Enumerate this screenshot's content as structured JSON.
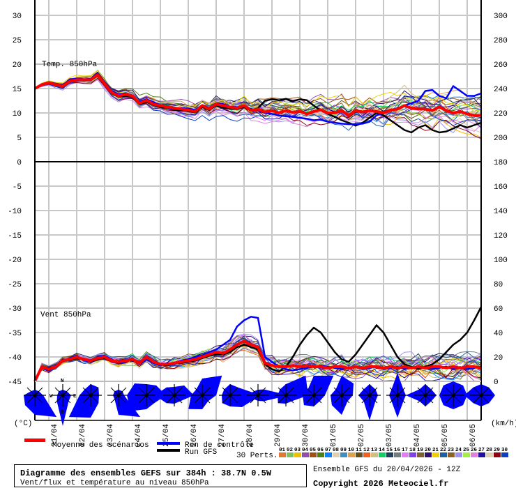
{
  "chart_data": {
    "type": "line",
    "title": "Diagramme des ensembles GEFS sur 384h : 38.7N 0.5W",
    "subtitle": "Vent/flux et température au niveau 850hPa",
    "run_info": "Ensemble GFS du 20/04/2026 - 12Z",
    "copyright": "Copyright 2026 Meteociel.fr",
    "step_hours": 6,
    "x_dates": [
      "21/04",
      "22/04",
      "23/04",
      "24/04",
      "25/04",
      "26/04",
      "27/04",
      "28/04",
      "29/04",
      "30/04",
      "01/05",
      "02/05",
      "03/05",
      "04/05",
      "05/05",
      "06/05"
    ],
    "left_axis_unit": "(°C)",
    "right_axis_unit": "(km/h)",
    "left_ticks": [
      "30",
      "25",
      "20",
      "15",
      "10",
      "5",
      "0",
      "-5",
      "-10",
      "-15",
      "-20",
      "-25",
      "-30",
      "-35",
      "-40",
      "-45"
    ],
    "right_ticks": [
      "300",
      "280",
      "260",
      "240",
      "220",
      "200",
      "180",
      "160",
      "140",
      "120",
      "100",
      "80",
      "60",
      "40",
      "20",
      "0"
    ],
    "temp_panel": {
      "label": "Temp. 850hPa",
      "unit": "°C",
      "ylim": [
        0,
        30
      ],
      "mean": [
        15,
        15.8,
        16.2,
        15.8,
        15.5,
        16.5,
        16.8,
        16.8,
        16.8,
        17.8,
        16,
        14.2,
        13.5,
        13.8,
        13.5,
        12,
        12.6,
        11.8,
        11.5,
        11.2,
        11,
        10.8,
        10.6,
        10.3,
        11.5,
        10.8,
        11.8,
        11.5,
        11.2,
        11,
        11.5,
        10.5,
        10.8,
        10.2,
        10.5,
        10,
        10.5,
        10.1,
        10.3,
        9.8,
        10.3,
        10.6,
        10,
        10,
        10.5,
        9.5,
        10.5,
        10.2,
        10.5,
        10.3,
        10,
        10.6,
        10.8,
        11.5,
        11,
        10.8,
        10.8,
        10.5,
        11.2,
        10.5,
        10,
        10.3,
        9.8,
        9.5,
        9.5
      ],
      "control": [
        15,
        15.9,
        16.3,
        15.9,
        15.4,
        16.8,
        17,
        16.9,
        17,
        18,
        16.2,
        14.5,
        13.8,
        14,
        13.2,
        12.3,
        12.8,
        12.2,
        11.6,
        11,
        10.8,
        11,
        10.9,
        10.6,
        11.6,
        11,
        12,
        11.8,
        11.3,
        11.2,
        11.4,
        10.8,
        10.5,
        10,
        9.8,
        9.5,
        9.3,
        9.2,
        9,
        8.8,
        8.5,
        8.6,
        8.2,
        8,
        7.8,
        7.7,
        7.7,
        7.8,
        8.2,
        9.5,
        10,
        10.5,
        11,
        11.5,
        12,
        12.5,
        14.5,
        14.7,
        13.5,
        13,
        15.5,
        14.5,
        13.5,
        13.5,
        14
      ],
      "gfs": [
        15,
        15.8,
        16.1,
        15.7,
        15.6,
        16.6,
        16.7,
        16.6,
        16.7,
        17.6,
        15.8,
        14,
        13.3,
        13.5,
        13.2,
        11.8,
        12.3,
        11.6,
        11.2,
        11,
        10.6,
        10.5,
        10.4,
        10.1,
        11.2,
        10.6,
        11.5,
        11.1,
        10.9,
        10.8,
        11.2,
        10.5,
        11,
        12.5,
        12.8,
        12.6,
        12.9,
        12.4,
        12.8,
        12.6,
        11.5,
        10.5,
        9.8,
        9.2,
        8.5,
        8,
        7.4,
        8,
        9,
        10,
        9.5,
        8.5,
        7.5,
        6.5,
        6,
        7,
        7.5,
        6.5,
        6,
        6.2,
        6.8,
        7.5,
        7,
        7.5,
        8
      ]
    },
    "wind_panel": {
      "label": "Vent 850hPa",
      "unit": "km/h",
      "ylim": [
        0,
        180
      ],
      "mean": [
        0,
        12,
        10,
        12,
        17,
        18,
        20,
        18,
        17,
        19,
        20,
        17,
        16,
        17,
        18,
        15,
        20,
        16,
        14,
        14,
        15,
        16,
        17,
        18,
        20,
        22,
        24,
        23,
        26,
        30,
        33,
        30,
        28,
        15,
        13,
        12,
        12,
        13,
        12,
        13,
        12,
        12,
        11,
        12,
        12,
        11,
        12,
        11,
        12,
        12,
        11,
        12,
        11,
        12,
        11,
        12,
        11,
        12,
        12,
        11,
        12,
        11,
        12,
        12,
        11
      ],
      "control": [
        0,
        11,
        9,
        13,
        16,
        19,
        21,
        17,
        16,
        20,
        21,
        18,
        15,
        16,
        19,
        14,
        18,
        15,
        13,
        15,
        14,
        17,
        18,
        20,
        21,
        24,
        26,
        30,
        34,
        45,
        50,
        53,
        52,
        20,
        16,
        12,
        10,
        9,
        10,
        11,
        12,
        13,
        12,
        11,
        10,
        11,
        12,
        10,
        11,
        12,
        10,
        11,
        12,
        10,
        11,
        12,
        11,
        10,
        11,
        12,
        10,
        11,
        10,
        11,
        12
      ],
      "gfs": [
        0,
        12,
        11,
        12,
        18,
        17,
        19,
        18,
        16,
        18,
        19,
        17,
        16,
        17,
        17,
        15,
        19,
        16,
        14,
        13,
        15,
        15,
        16,
        17,
        19,
        21,
        22,
        22,
        24,
        28,
        30,
        28,
        26,
        14,
        10,
        8,
        12,
        20,
        30,
        38,
        44,
        40,
        32,
        24,
        18,
        16,
        22,
        30,
        38,
        46,
        40,
        30,
        20,
        14,
        12,
        10,
        12,
        14,
        18,
        24,
        30,
        34,
        40,
        50,
        61
      ]
    },
    "perturbations": {
      "count_label": "30 Perts.",
      "labels": [
        "01",
        "02",
        "03",
        "04",
        "05",
        "06",
        "07",
        "08",
        "09",
        "10",
        "11",
        "12",
        "13",
        "14",
        "15",
        "16",
        "17",
        "18",
        "19",
        "20",
        "21",
        "22",
        "23",
        "24",
        "25",
        "26",
        "27",
        "28",
        "29",
        "30"
      ],
      "colors": [
        "#e07a30",
        "#80c060",
        "#f0c000",
        "#9050b0",
        "#a05010",
        "#508010",
        "#1080ff",
        "#e0d0b0",
        "#4090c0",
        "#e0a050",
        "#605020",
        "#f06020",
        "#d0c080",
        "#10d060",
        "#204060",
        "#708080",
        "#e080f0",
        "#8040f0",
        "#806030",
        "#301070",
        "#f0d000",
        "#2060a0",
        "#906020",
        "#a090f0",
        "#a0f040",
        "#e080e0",
        "#2010a0",
        "#e0d0b0",
        "#900010",
        "#1040c0"
      ],
      "temp_spread_start": 0.3,
      "temp_spread_end": 3.2,
      "wind_spread_start": 2,
      "wind_spread_end": 9
    },
    "wind_roses": {
      "sector_order": [
        "N",
        "NE",
        "E",
        "SE",
        "S",
        "SW",
        "W",
        "NW"
      ],
      "compass_labels": [
        "N",
        "S",
        "W",
        "E"
      ],
      "sectors": [
        [
          0.1,
          0.1,
          0.2,
          1.0,
          0.6,
          0.4,
          0.3,
          0.1
        ],
        [
          0.1,
          0.1,
          0.2,
          0.2,
          1.0,
          0.2,
          0.1,
          0.1
        ],
        [
          0.3,
          0.3,
          0.2,
          0.3,
          0.7,
          1.0,
          0.3,
          0.2
        ],
        [
          0.1,
          0.1,
          0.1,
          1.0,
          0.6,
          0.1,
          0.1,
          0.1
        ],
        [
          0.3,
          0.4,
          0.6,
          0.3,
          0.4,
          0.7,
          0.6,
          0.5
        ],
        [
          0.2,
          0.4,
          0.6,
          0.2,
          0.2,
          0.3,
          0.6,
          0.3
        ],
        [
          0.5,
          0.9,
          0.4,
          0.2,
          0.4,
          0.6,
          0.3,
          0.2
        ],
        [
          0.3,
          0.3,
          1.0,
          0.5,
          0.3,
          0.3,
          0.2,
          0.2
        ],
        [
          0.1,
          0.2,
          1.0,
          0.2,
          0.1,
          0.1,
          0.3,
          0.1
        ],
        [
          0.3,
          0.9,
          0.7,
          0.2,
          0.2,
          0.3,
          0.2,
          0.2
        ],
        [
          0.6,
          0.9,
          0.3,
          0.2,
          0.3,
          0.4,
          0.3,
          0.2
        ],
        [
          0.6,
          0.5,
          0.3,
          0.2,
          0.6,
          0.4,
          0.3,
          0.2
        ],
        [
          0.3,
          0.2,
          0.2,
          0.2,
          0.8,
          0.2,
          0.3,
          0.2
        ],
        [
          0.7,
          0.2,
          0.2,
          0.2,
          0.7,
          0.2,
          0.2,
          0.2
        ],
        [
          0.3,
          0.2,
          0.3,
          0.2,
          0.3,
          0.2,
          0.6,
          0.2
        ],
        [
          0.4,
          0.4,
          0.4,
          0.4,
          0.4,
          0.4,
          0.4,
          0.4
        ],
        [
          0.3,
          0.3,
          0.4,
          0.3,
          0.3,
          0.3,
          0.5,
          0.3
        ]
      ]
    },
    "legend": {
      "mean": "Moyenne des scénarios",
      "control": "Run de contrôle",
      "gfs": "Run GFS",
      "mean_color": "#ff0000",
      "control_color": "#0000ff",
      "gfs_color": "#000000"
    }
  }
}
